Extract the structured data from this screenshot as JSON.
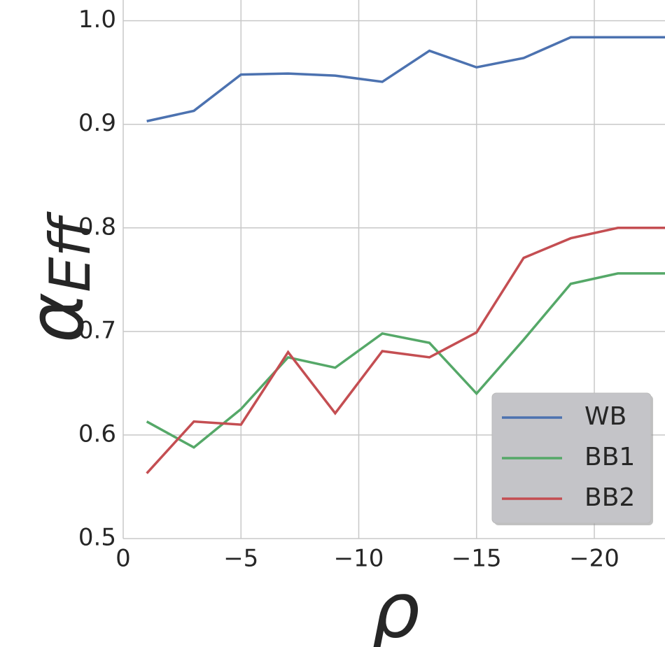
{
  "chart_data": {
    "type": "line",
    "x_label": "ρ",
    "y_label": {
      "base": "α",
      "sub": "Eff"
    },
    "x": [
      -1,
      -3,
      -5,
      -7,
      -9,
      -11,
      -13,
      -15,
      -17,
      -19,
      -21,
      -23
    ],
    "series": [
      {
        "name": "WB",
        "color": "#4c72b0",
        "values": [
          0.903,
          0.913,
          0.948,
          0.949,
          0.947,
          0.941,
          0.971,
          0.955,
          0.964,
          0.984,
          0.984,
          0.984
        ]
      },
      {
        "name": "BB1",
        "color": "#55a868",
        "values": [
          0.613,
          0.588,
          0.625,
          0.675,
          0.665,
          0.698,
          0.689,
          0.64,
          0.692,
          0.746,
          0.756,
          0.756
        ]
      },
      {
        "name": "BB2",
        "color": "#c44e52",
        "values": [
          0.563,
          0.613,
          0.61,
          0.68,
          0.621,
          0.681,
          0.675,
          0.699,
          0.771,
          0.79,
          0.8,
          0.8
        ]
      }
    ],
    "xlim": [
      0,
      -23
    ],
    "xticks": [
      0,
      {
        "value": -5,
        "label": "−5"
      },
      {
        "value": -10,
        "label": "−10"
      },
      {
        "value": -15,
        "label": "−15"
      },
      {
        "value": -20,
        "label": "−20"
      }
    ],
    "ylim": [
      0.5,
      1.02
    ],
    "yticks": [
      0.5,
      0.6,
      0.7,
      0.8,
      0.9,
      {
        "value": 1,
        "label": "1.0"
      }
    ],
    "grid": true,
    "legend": "lower right"
  }
}
